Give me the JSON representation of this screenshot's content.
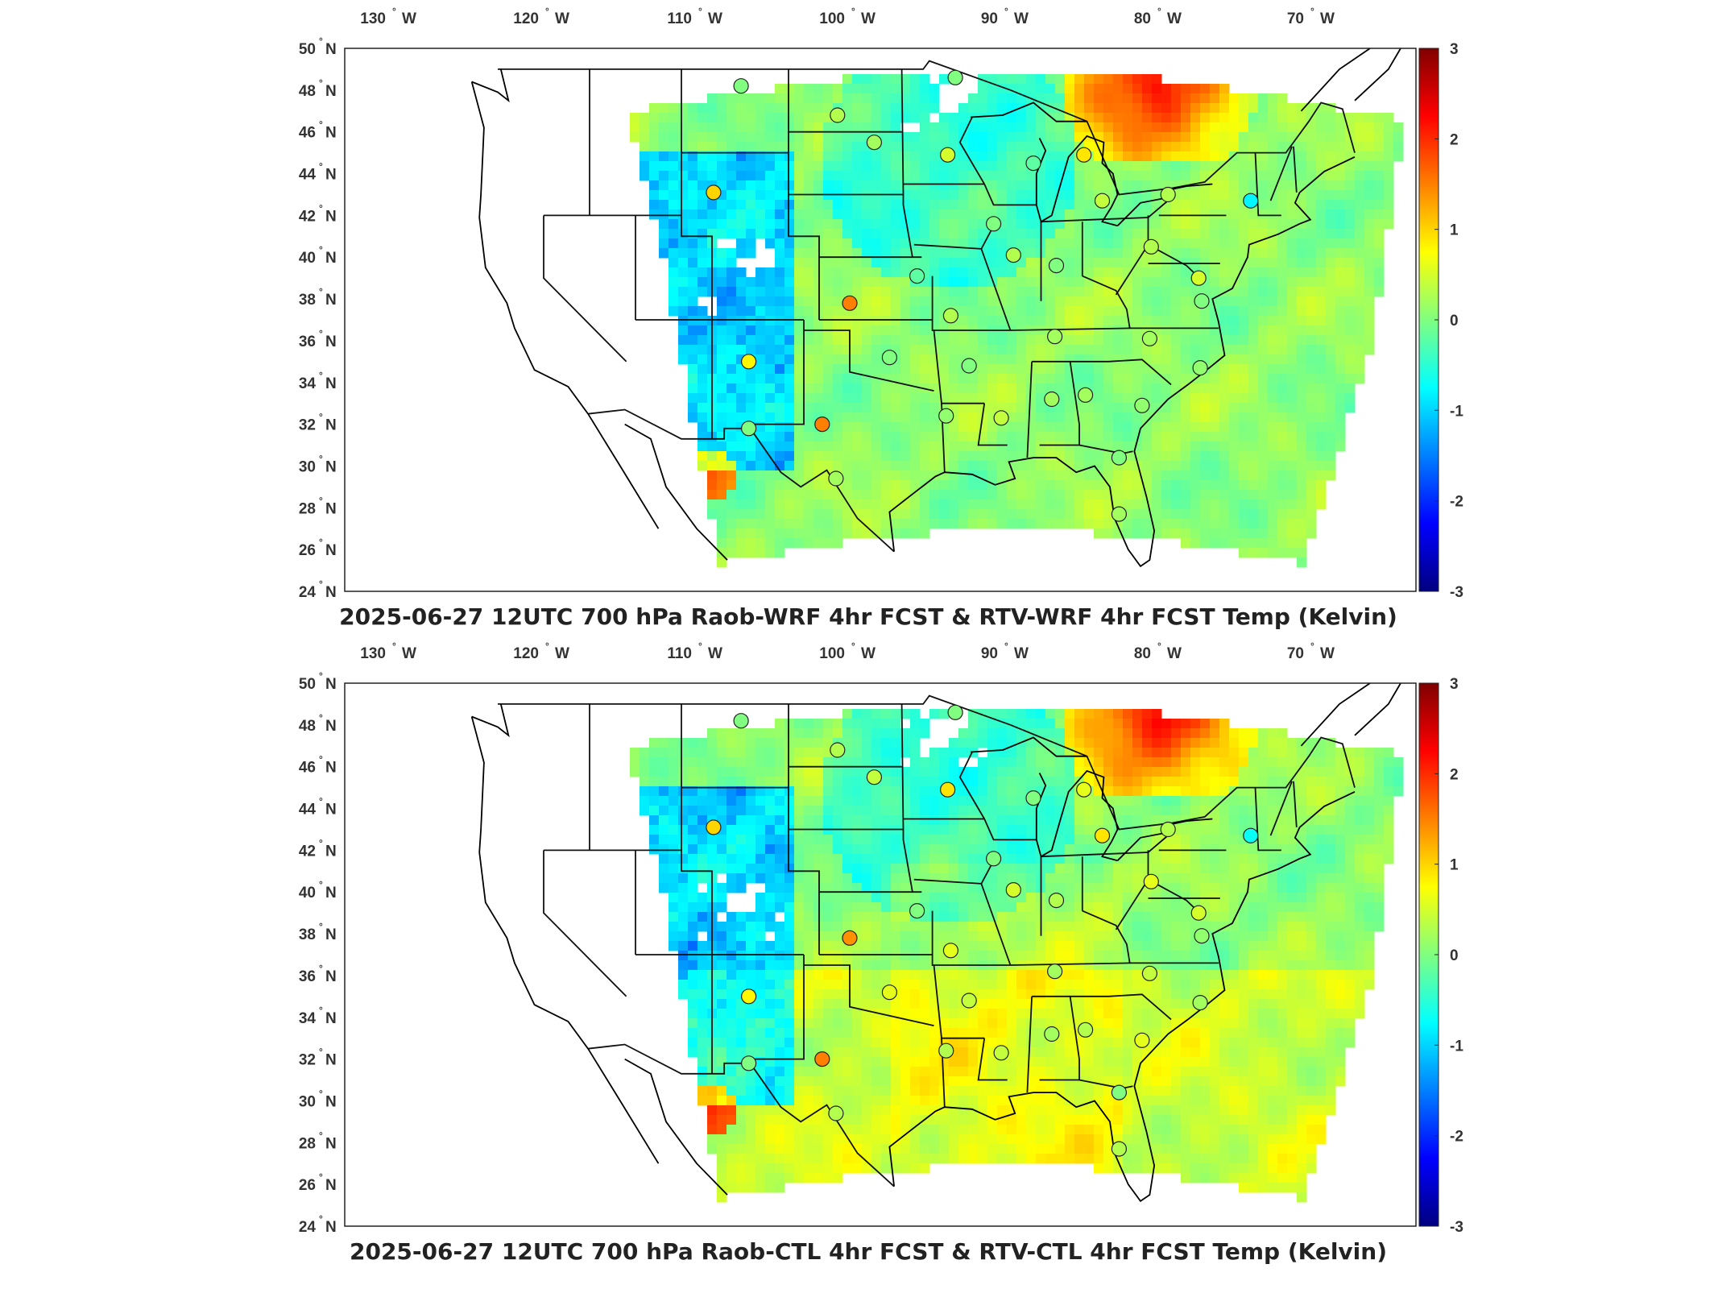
{
  "panels": [
    {
      "title": "2025-06-27 12UTC 700 hPa Raob-WRF 4hr FCST & RTV-WRF 4hr FCST Temp (Kelvin)",
      "stations": [
        {
          "lon": -107.1,
          "lat": 48.2,
          "v": 0.0
        },
        {
          "lon": -100.8,
          "lat": 46.8,
          "v": 0.3
        },
        {
          "lon": -98.4,
          "lat": 45.5,
          "v": 0.2
        },
        {
          "lon": -93.6,
          "lat": 44.9,
          "v": 0.5
        },
        {
          "lon": -93.1,
          "lat": 48.6,
          "v": 0.0
        },
        {
          "lon": -88.0,
          "lat": 44.5,
          "v": -0.2
        },
        {
          "lon": -84.7,
          "lat": 44.9,
          "v": 0.9
        },
        {
          "lon": -83.5,
          "lat": 42.7,
          "v": 0.4
        },
        {
          "lon": -79.2,
          "lat": 43.0,
          "v": 0.3
        },
        {
          "lon": -73.8,
          "lat": 42.7,
          "v": -0.8
        },
        {
          "lon": -108.9,
          "lat": 43.1,
          "v": 1.0
        },
        {
          "lon": -90.6,
          "lat": 41.6,
          "v": 0.0
        },
        {
          "lon": -89.3,
          "lat": 40.1,
          "v": 0.3
        },
        {
          "lon": -86.5,
          "lat": 39.6,
          "v": 0.0
        },
        {
          "lon": -80.3,
          "lat": 40.5,
          "v": 0.3
        },
        {
          "lon": -77.2,
          "lat": 39.0,
          "v": 0.5
        },
        {
          "lon": -95.6,
          "lat": 39.1,
          "v": -0.2
        },
        {
          "lon": -100.0,
          "lat": 37.8,
          "v": 1.5
        },
        {
          "lon": -93.4,
          "lat": 37.2,
          "v": 0.3
        },
        {
          "lon": -86.6,
          "lat": 36.2,
          "v": 0.2
        },
        {
          "lon": -80.4,
          "lat": 36.1,
          "v": 0.2
        },
        {
          "lon": -77.0,
          "lat": 37.9,
          "v": 0.0
        },
        {
          "lon": -106.6,
          "lat": 35.0,
          "v": 0.8
        },
        {
          "lon": -97.4,
          "lat": 35.2,
          "v": 0.0
        },
        {
          "lon": -92.2,
          "lat": 34.8,
          "v": 0.0
        },
        {
          "lon": -86.8,
          "lat": 33.2,
          "v": 0.2
        },
        {
          "lon": -84.6,
          "lat": 33.4,
          "v": 0.2
        },
        {
          "lon": -80.9,
          "lat": 32.9,
          "v": 0.1
        },
        {
          "lon": -77.1,
          "lat": 34.7,
          "v": 0.1
        },
        {
          "lon": -101.8,
          "lat": 32.0,
          "v": 1.5
        },
        {
          "lon": -106.6,
          "lat": 31.8,
          "v": 0.0
        },
        {
          "lon": -93.7,
          "lat": 32.4,
          "v": 0.1
        },
        {
          "lon": -90.1,
          "lat": 32.3,
          "v": 0.4
        },
        {
          "lon": -82.4,
          "lat": 30.4,
          "v": 0.0
        },
        {
          "lon": -100.9,
          "lat": 29.4,
          "v": 0.2
        },
        {
          "lon": -82.4,
          "lat": 27.7,
          "v": 0.2
        }
      ]
    },
    {
      "title": "2025-06-27 12UTC 700 hPa Raob-CTL 4hr FCST & RTV-CTL 4hr FCST Temp (Kelvin)",
      "stations": [
        {
          "lon": -107.1,
          "lat": 48.2,
          "v": 0.0
        },
        {
          "lon": -100.8,
          "lat": 46.8,
          "v": 0.3
        },
        {
          "lon": -98.4,
          "lat": 45.5,
          "v": 0.4
        },
        {
          "lon": -93.6,
          "lat": 44.9,
          "v": 0.9
        },
        {
          "lon": -93.1,
          "lat": 48.6,
          "v": 0.0
        },
        {
          "lon": -88.0,
          "lat": 44.5,
          "v": 0.0
        },
        {
          "lon": -84.7,
          "lat": 44.9,
          "v": 0.6
        },
        {
          "lon": -83.5,
          "lat": 42.7,
          "v": 0.9
        },
        {
          "lon": -79.2,
          "lat": 43.0,
          "v": 0.3
        },
        {
          "lon": -73.8,
          "lat": 42.7,
          "v": -0.7
        },
        {
          "lon": -108.9,
          "lat": 43.1,
          "v": 1.0
        },
        {
          "lon": -90.6,
          "lat": 41.6,
          "v": 0.0
        },
        {
          "lon": -89.3,
          "lat": 40.1,
          "v": 0.5
        },
        {
          "lon": -86.5,
          "lat": 39.6,
          "v": 0.3
        },
        {
          "lon": -80.3,
          "lat": 40.5,
          "v": 0.6
        },
        {
          "lon": -77.2,
          "lat": 39.0,
          "v": 0.5
        },
        {
          "lon": -95.6,
          "lat": 39.1,
          "v": 0.0
        },
        {
          "lon": -100.0,
          "lat": 37.8,
          "v": 1.4
        },
        {
          "lon": -93.4,
          "lat": 37.2,
          "v": 0.6
        },
        {
          "lon": -86.6,
          "lat": 36.2,
          "v": 0.2
        },
        {
          "lon": -80.4,
          "lat": 36.1,
          "v": 0.4
        },
        {
          "lon": -77.0,
          "lat": 37.9,
          "v": 0.1
        },
        {
          "lon": -106.6,
          "lat": 35.0,
          "v": 0.8
        },
        {
          "lon": -97.4,
          "lat": 35.2,
          "v": 0.6
        },
        {
          "lon": -92.2,
          "lat": 34.8,
          "v": 0.4
        },
        {
          "lon": -86.8,
          "lat": 33.2,
          "v": 0.2
        },
        {
          "lon": -84.6,
          "lat": 33.4,
          "v": 0.3
        },
        {
          "lon": -80.9,
          "lat": 32.9,
          "v": 0.6
        },
        {
          "lon": -77.1,
          "lat": 34.7,
          "v": 0.2
        },
        {
          "lon": -101.8,
          "lat": 32.0,
          "v": 1.5
        },
        {
          "lon": -106.6,
          "lat": 31.8,
          "v": 0.0
        },
        {
          "lon": -93.7,
          "lat": 32.4,
          "v": 0.3
        },
        {
          "lon": -90.1,
          "lat": 32.3,
          "v": 0.4
        },
        {
          "lon": -82.4,
          "lat": 30.4,
          "v": 0.0
        },
        {
          "lon": -100.9,
          "lat": 29.4,
          "v": 0.3
        },
        {
          "lon": -82.4,
          "lat": 27.7,
          "v": 0.3
        }
      ]
    }
  ],
  "lon_ticks": [
    {
      "value": -130,
      "deg": "130",
      "hemi": "W"
    },
    {
      "value": -120,
      "deg": "120",
      "hemi": "W"
    },
    {
      "value": -110,
      "deg": "110",
      "hemi": "W"
    },
    {
      "value": -100,
      "deg": "100",
      "hemi": "W"
    },
    {
      "value": -90,
      "deg": "90",
      "hemi": "W"
    },
    {
      "value": -80,
      "deg": "80",
      "hemi": "W"
    },
    {
      "value": -70,
      "deg": "70",
      "hemi": "W"
    }
  ],
  "lat_ticks": [
    {
      "value": 24,
      "deg": "24",
      "hemi": "N"
    },
    {
      "value": 26,
      "deg": "26",
      "hemi": "N"
    },
    {
      "value": 28,
      "deg": "28",
      "hemi": "N"
    },
    {
      "value": 30,
      "deg": "30",
      "hemi": "N"
    },
    {
      "value": 32,
      "deg": "32",
      "hemi": "N"
    },
    {
      "value": 34,
      "deg": "34",
      "hemi": "N"
    },
    {
      "value": 36,
      "deg": "36",
      "hemi": "N"
    },
    {
      "value": 38,
      "deg": "38",
      "hemi": "N"
    },
    {
      "value": 40,
      "deg": "40",
      "hemi": "N"
    },
    {
      "value": 42,
      "deg": "42",
      "hemi": "N"
    },
    {
      "value": 44,
      "deg": "44",
      "hemi": "N"
    },
    {
      "value": 46,
      "deg": "46",
      "hemi": "N"
    },
    {
      "value": 48,
      "deg": "48",
      "hemi": "N"
    },
    {
      "value": 50,
      "deg": "50",
      "hemi": "N"
    }
  ],
  "colorbar": {
    "min": -3,
    "max": 3,
    "ticks": [
      {
        "value": 3,
        "label": "3"
      },
      {
        "value": 2,
        "label": "2"
      },
      {
        "value": 1,
        "label": "1"
      },
      {
        "value": 0,
        "label": "0"
      },
      {
        "value": -1,
        "label": "-1"
      },
      {
        "value": -2,
        "label": "-2"
      },
      {
        "value": -3,
        "label": "-3"
      }
    ],
    "colormap": "jet"
  }
}
